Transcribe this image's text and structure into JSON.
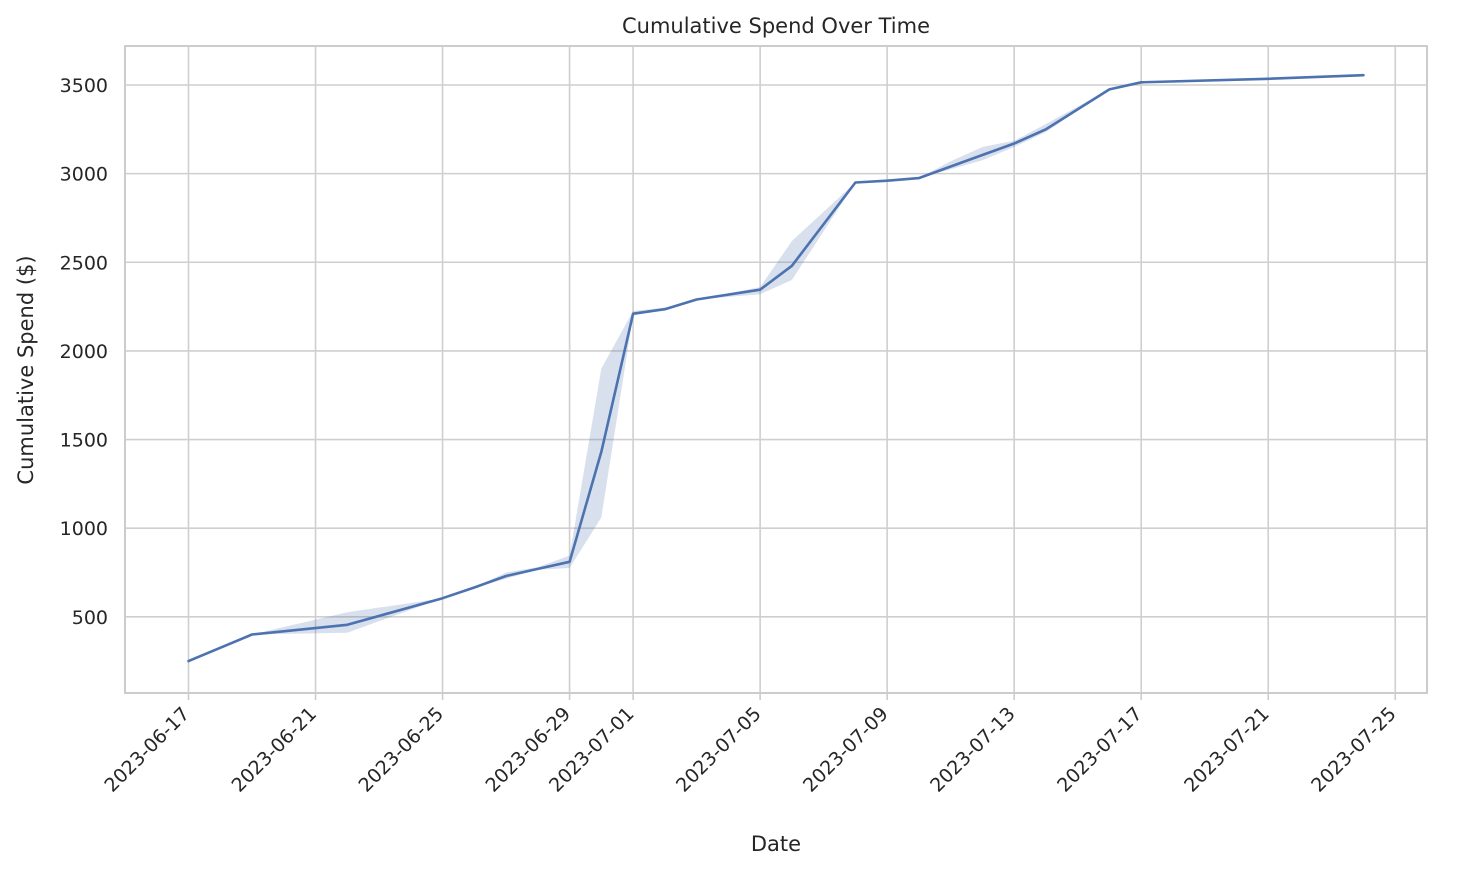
{
  "chart_data": {
    "type": "line",
    "title": "Cumulative Spend Over Time",
    "xlabel": "Date",
    "ylabel": "Cumulative Spend ($)",
    "x_ticks": [
      "2023-06-17",
      "2023-06-21",
      "2023-06-25",
      "2023-06-29",
      "2023-07-01",
      "2023-07-05",
      "2023-07-09",
      "2023-07-13",
      "2023-07-17",
      "2023-07-21",
      "2023-07-25"
    ],
    "y_ticks": [
      500,
      1000,
      1500,
      2000,
      2500,
      3000,
      3500
    ],
    "xlim": [
      "2023-06-15",
      "2023-07-26"
    ],
    "ylim": [
      70,
      3720
    ],
    "grid": true,
    "colors": {
      "line": "#4c72b0",
      "band": "#4c72b0",
      "grid": "#cfcfcf",
      "frame": "#cccccc",
      "text": "#262626"
    },
    "series": [
      {
        "x": [
          "2023-06-17",
          "2023-06-19",
          "2023-06-22",
          "2023-06-25",
          "2023-06-26",
          "2023-06-27",
          "2023-06-28",
          "2023-06-29",
          "2023-06-30",
          "2023-07-01",
          "2023-07-02",
          "2023-07-03",
          "2023-07-05",
          "2023-07-06",
          "2023-07-08",
          "2023-07-09",
          "2023-07-10",
          "2023-07-11",
          "2023-07-12",
          "2023-07-13",
          "2023-07-14",
          "2023-07-16",
          "2023-07-17",
          "2023-07-21",
          "2023-07-24"
        ],
        "y": [
          250,
          400,
          455,
          605,
          665,
          730,
          770,
          810,
          1430,
          2210,
          2235,
          2290,
          2345,
          2480,
          2950,
          2960,
          2975,
          3040,
          3105,
          3170,
          3250,
          3475,
          3515,
          3535,
          3555
        ],
        "ci_low": [
          250,
          400,
          410,
          605,
          665,
          715,
          765,
          775,
          1060,
          2200,
          2230,
          2290,
          2320,
          2400,
          2950,
          2960,
          2975,
          3025,
          3075,
          3150,
          3235,
          3475,
          3515,
          3535,
          3555
        ],
        "ci_high": [
          250,
          400,
          525,
          605,
          665,
          750,
          780,
          845,
          1900,
          2225,
          2245,
          2290,
          2360,
          2620,
          2950,
          2960,
          2975,
          3070,
          3150,
          3185,
          3280,
          3475,
          3515,
          3535,
          3555
        ]
      }
    ]
  }
}
